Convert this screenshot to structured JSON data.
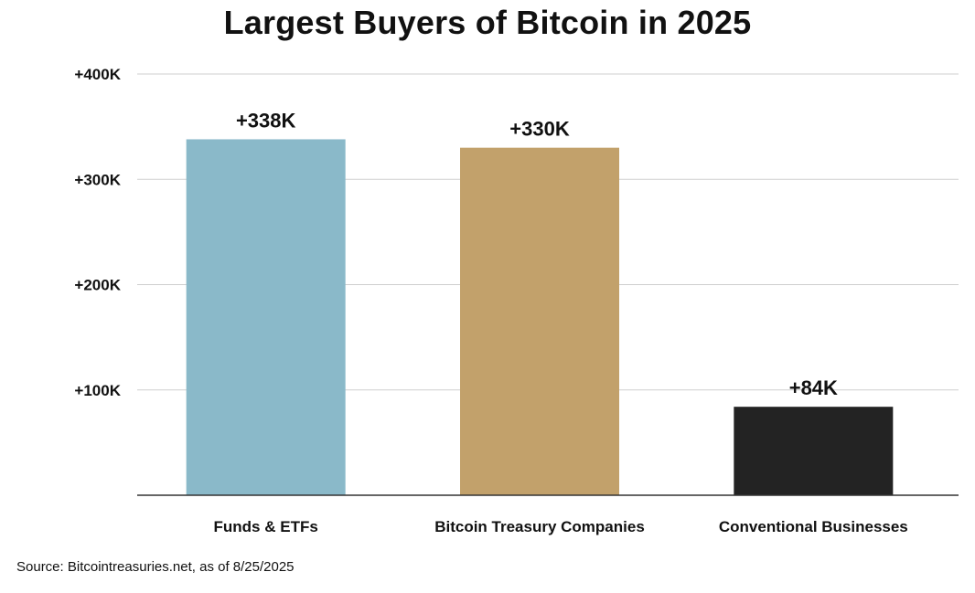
{
  "chart_data": {
    "type": "bar",
    "title": "Largest Buyers of Bitcoin in 2025",
    "categories": [
      "Funds & ETFs",
      "Bitcoin Treasury Companies",
      "Conventional Businesses"
    ],
    "values": [
      338000,
      330000,
      84000
    ],
    "data_labels": [
      "+338K",
      "+330K",
      "+84K"
    ],
    "bar_colors": [
      "#8AB9C9",
      "#C2A16B",
      "#232323"
    ],
    "ylim": [
      0,
      400000
    ],
    "yticks": [
      {
        "value": 100000,
        "label": "+100K"
      },
      {
        "value": 200000,
        "label": "+200K"
      },
      {
        "value": 300000,
        "label": "+300K"
      },
      {
        "value": 400000,
        "label": "+400K"
      }
    ],
    "grid": true,
    "xlabel": "",
    "ylabel": ""
  },
  "source": "Source: Bitcointreasuries.net, as of 8/25/2025"
}
